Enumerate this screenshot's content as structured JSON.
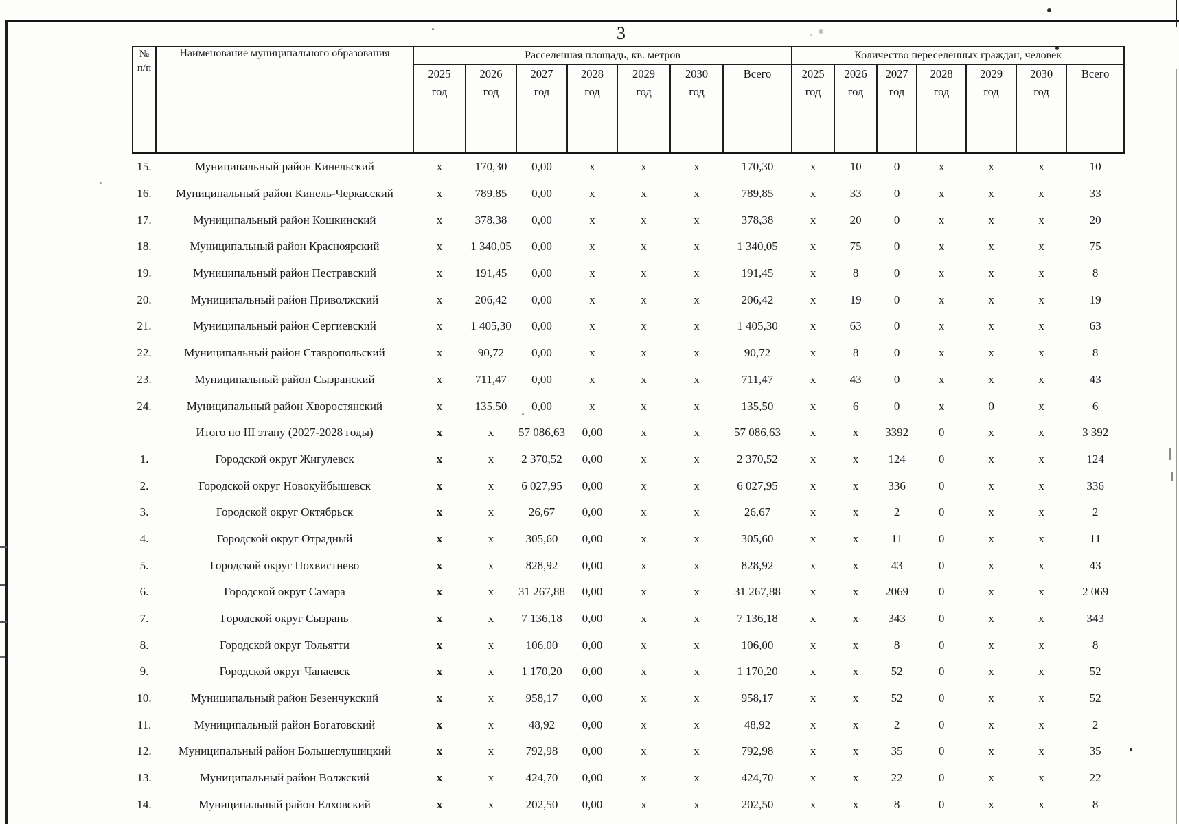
{
  "page_number": "3",
  "table": {
    "header": {
      "num_top": "№",
      "num_bottom": "п/п",
      "name": "Наименование муниципального образования",
      "area_group": "Расселенная площадь, кв. метров",
      "citizens_group": "Количество переселенных граждан, человек",
      "years": [
        "2025",
        "2026",
        "2027",
        "2028",
        "2029",
        "2030"
      ],
      "year_suffix": "год",
      "total": "Всего"
    },
    "rows": [
      {
        "num": "15.",
        "name": "Муниципальный район Кинельский",
        "area": [
          "x",
          "170,30",
          "0,00",
          "x",
          "x",
          "x",
          "170,30"
        ],
        "cit": [
          "x",
          "10",
          "0",
          "x",
          "x",
          "x",
          "10"
        ],
        "boldx": false
      },
      {
        "num": "16.",
        "name": "Муниципальный район Кинель-Черкасский",
        "area": [
          "x",
          "789,85",
          "0,00",
          "x",
          "x",
          "x",
          "789,85"
        ],
        "cit": [
          "x",
          "33",
          "0",
          "x",
          "x",
          "x",
          "33"
        ],
        "boldx": false
      },
      {
        "num": "17.",
        "name": "Муниципальный район Кошкинский",
        "area": [
          "x",
          "378,38",
          "0,00",
          "x",
          "x",
          "x",
          "378,38"
        ],
        "cit": [
          "x",
          "20",
          "0",
          "x",
          "x",
          "x",
          "20"
        ],
        "boldx": false
      },
      {
        "num": "18.",
        "name": "Муниципальный район Красноярский",
        "area": [
          "x",
          "1 340,05",
          "0,00",
          "x",
          "x",
          "x",
          "1 340,05"
        ],
        "cit": [
          "x",
          "75",
          "0",
          "x",
          "x",
          "x",
          "75"
        ],
        "boldx": false
      },
      {
        "num": "19.",
        "name": "Муниципальный район Пестравский",
        "area": [
          "x",
          "191,45",
          "0,00",
          "x",
          "x",
          "x",
          "191,45"
        ],
        "cit": [
          "x",
          "8",
          "0",
          "x",
          "x",
          "x",
          "8"
        ],
        "boldx": false
      },
      {
        "num": "20.",
        "name": "Муниципальный район Приволжский",
        "area": [
          "x",
          "206,42",
          "0,00",
          "x",
          "x",
          "x",
          "206,42"
        ],
        "cit": [
          "x",
          "19",
          "0",
          "x",
          "x",
          "x",
          "19"
        ],
        "boldx": false
      },
      {
        "num": "21.",
        "name": "Муниципальный район Сергиевский",
        "area": [
          "x",
          "1 405,30",
          "0,00",
          "x",
          "x",
          "x",
          "1 405,30"
        ],
        "cit": [
          "x",
          "63",
          "0",
          "x",
          "x",
          "x",
          "63"
        ],
        "boldx": false
      },
      {
        "num": "22.",
        "name": "Муниципальный район Ставропольский",
        "area": [
          "x",
          "90,72",
          "0,00",
          "x",
          "x",
          "x",
          "90,72"
        ],
        "cit": [
          "x",
          "8",
          "0",
          "x",
          "x",
          "x",
          "8"
        ],
        "boldx": false
      },
      {
        "num": "23.",
        "name": "Муниципальный район Сызранский",
        "area": [
          "x",
          "711,47",
          "0,00",
          "x",
          "x",
          "x",
          "711,47"
        ],
        "cit": [
          "x",
          "43",
          "0",
          "x",
          "x",
          "x",
          "43"
        ],
        "boldx": false
      },
      {
        "num": "24.",
        "name": "Муниципальный район Хворостянский",
        "area": [
          "x",
          "135,50",
          "0,00",
          "x",
          "x",
          "x",
          "135,50"
        ],
        "cit": [
          "x",
          "6",
          "0",
          "x",
          "0",
          "x",
          "6"
        ],
        "boldx": false
      },
      {
        "num": "",
        "name": "Итого по III этапу (2027-2028 годы)",
        "area": [
          "x",
          "x",
          "57 086,63",
          "0,00",
          "x",
          "x",
          "57 086,63"
        ],
        "cit": [
          "x",
          "x",
          "3392",
          "0",
          "x",
          "x",
          "3 392"
        ],
        "boldx": true
      },
      {
        "num": "1.",
        "name": "Городской округ Жигулевск",
        "area": [
          "x",
          "x",
          "2 370,52",
          "0,00",
          "x",
          "x",
          "2 370,52"
        ],
        "cit": [
          "x",
          "x",
          "124",
          "0",
          "x",
          "x",
          "124"
        ],
        "boldx": true
      },
      {
        "num": "2.",
        "name": "Городской округ Новокуйбышевск",
        "area": [
          "x",
          "x",
          "6 027,95",
          "0,00",
          "x",
          "x",
          "6 027,95"
        ],
        "cit": [
          "x",
          "x",
          "336",
          "0",
          "x",
          "x",
          "336"
        ],
        "boldx": true
      },
      {
        "num": "3.",
        "name": "Городской округ Октябрьск",
        "area": [
          "x",
          "x",
          "26,67",
          "0,00",
          "x",
          "x",
          "26,67"
        ],
        "cit": [
          "x",
          "x",
          "2",
          "0",
          "x",
          "x",
          "2"
        ],
        "boldx": true
      },
      {
        "num": "4.",
        "name": "Городской округ Отрадный",
        "area": [
          "x",
          "x",
          "305,60",
          "0,00",
          "x",
          "x",
          "305,60"
        ],
        "cit": [
          "x",
          "x",
          "11",
          "0",
          "x",
          "x",
          "11"
        ],
        "boldx": true
      },
      {
        "num": "5.",
        "name": "Городской округ Похвистнево",
        "area": [
          "x",
          "x",
          "828,92",
          "0,00",
          "x",
          "x",
          "828,92"
        ],
        "cit": [
          "x",
          "x",
          "43",
          "0",
          "x",
          "x",
          "43"
        ],
        "boldx": true
      },
      {
        "num": "6.",
        "name": "Городской округ Самара",
        "area": [
          "x",
          "x",
          "31 267,88",
          "0,00",
          "x",
          "x",
          "31 267,88"
        ],
        "cit": [
          "x",
          "x",
          "2069",
          "0",
          "x",
          "x",
          "2 069"
        ],
        "boldx": true
      },
      {
        "num": "7.",
        "name": "Городской округ Сызрань",
        "area": [
          "x",
          "x",
          "7 136,18",
          "0,00",
          "x",
          "x",
          "7 136,18"
        ],
        "cit": [
          "x",
          "x",
          "343",
          "0",
          "x",
          "x",
          "343"
        ],
        "boldx": true
      },
      {
        "num": "8.",
        "name": "Городской округ Тольятти",
        "area": [
          "x",
          "x",
          "106,00",
          "0,00",
          "x",
          "x",
          "106,00"
        ],
        "cit": [
          "x",
          "x",
          "8",
          "0",
          "x",
          "x",
          "8"
        ],
        "boldx": true
      },
      {
        "num": "9.",
        "name": "Городской округ Чапаевск",
        "area": [
          "x",
          "x",
          "1 170,20",
          "0,00",
          "x",
          "x",
          "1 170,20"
        ],
        "cit": [
          "x",
          "x",
          "52",
          "0",
          "x",
          "x",
          "52"
        ],
        "boldx": true
      },
      {
        "num": "10.",
        "name": "Муниципальный район Безенчукский",
        "area": [
          "x",
          "x",
          "958,17",
          "0,00",
          "x",
          "x",
          "958,17"
        ],
        "cit": [
          "x",
          "x",
          "52",
          "0",
          "x",
          "x",
          "52"
        ],
        "boldx": true
      },
      {
        "num": "11.",
        "name": "Муниципальный район Богатовский",
        "area": [
          "x",
          "x",
          "48,92",
          "0,00",
          "x",
          "x",
          "48,92"
        ],
        "cit": [
          "x",
          "x",
          "2",
          "0",
          "x",
          "x",
          "2"
        ],
        "boldx": true
      },
      {
        "num": "12.",
        "name": "Муниципальный район Большеглушицкий",
        "area": [
          "x",
          "x",
          "792,98",
          "0,00",
          "x",
          "x",
          "792,98"
        ],
        "cit": [
          "x",
          "x",
          "35",
          "0",
          "x",
          "x",
          "35"
        ],
        "boldx": true
      },
      {
        "num": "13.",
        "name": "Муниципальный район Волжский",
        "area": [
          "x",
          "x",
          "424,70",
          "0,00",
          "x",
          "x",
          "424,70"
        ],
        "cit": [
          "x",
          "x",
          "22",
          "0",
          "x",
          "x",
          "22"
        ],
        "boldx": true
      },
      {
        "num": "14.",
        "name": "Муниципальный район Елховский",
        "area": [
          "x",
          "x",
          "202,50",
          "0,00",
          "x",
          "x",
          "202,50"
        ],
        "cit": [
          "x",
          "x",
          "8",
          "0",
          "x",
          "x",
          "8"
        ],
        "boldx": true
      }
    ]
  },
  "ink_color": "#1b1b1b"
}
